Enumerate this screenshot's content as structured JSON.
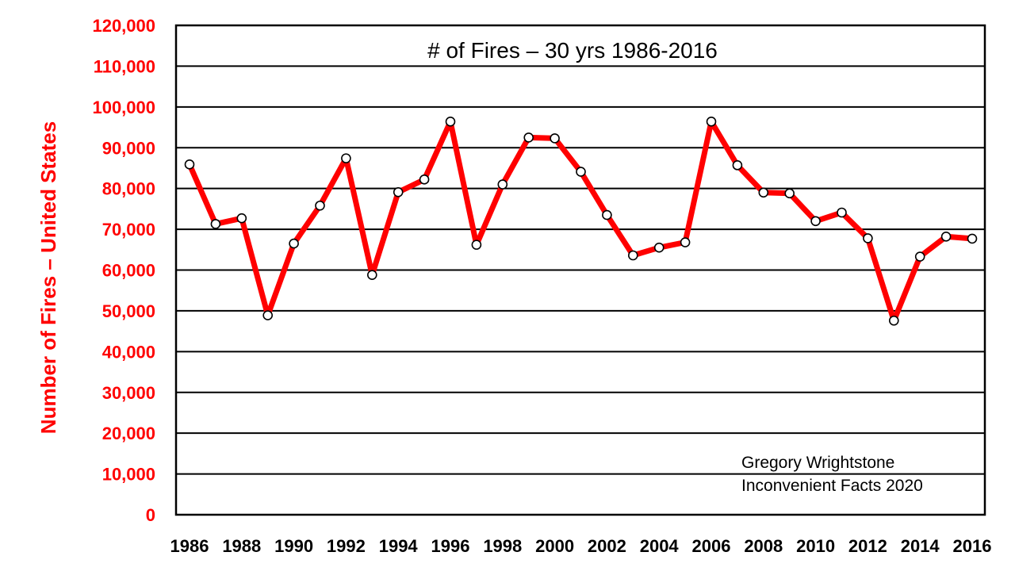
{
  "chart_data": {
    "type": "line",
    "title": "# of Fires – 30 yrs 1986-2016",
    "xlabel": "",
    "ylabel": "Number of Fires – United States",
    "ylim": [
      0,
      120000
    ],
    "ytick_labels": [
      "0",
      "10,000",
      "20,000",
      "30,000",
      "40,000",
      "50,000",
      "60,000",
      "70,000",
      "80,000",
      "90,000",
      "100,000",
      "110,000",
      "120,000"
    ],
    "x_tick_labels": [
      "1986",
      "1988",
      "1990",
      "1992",
      "1994",
      "1996",
      "1998",
      "2000",
      "2002",
      "2004",
      "2006",
      "2008",
      "2010",
      "2012",
      "2014",
      "2016"
    ],
    "grid": true,
    "annotation": {
      "line1": "Gregory Wrightstone",
      "line2": "Inconvenient Facts 2020"
    },
    "colors": {
      "line": "#ff0000",
      "marker_fill": "#ffffff",
      "marker_stroke": "#000000",
      "axis_text": "#ff0000"
    },
    "series": [
      {
        "x": [
          1986,
          1987,
          1988,
          1989,
          1990,
          1991,
          1992,
          1993,
          1994,
          1995,
          1996,
          1997,
          1998,
          1999,
          2000,
          2001,
          2002,
          2003,
          2004,
          2005,
          2006,
          2007,
          2008,
          2009,
          2010,
          2011,
          2012,
          2013,
          2014,
          2015,
          2016
        ],
        "values": [
          85900,
          71300,
          72700,
          48900,
          66500,
          75800,
          87400,
          58800,
          79100,
          82200,
          96400,
          66200,
          81000,
          92500,
          92300,
          84100,
          73500,
          63600,
          65500,
          66800,
          96400,
          85700,
          79000,
          78800,
          72000,
          74100,
          67800,
          47600,
          63300,
          68200,
          67700
        ]
      }
    ]
  }
}
